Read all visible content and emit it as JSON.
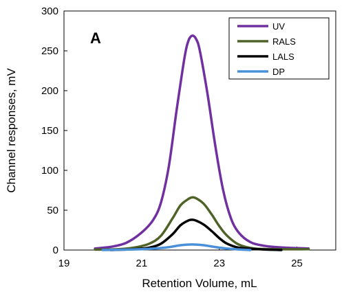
{
  "chart_data": {
    "type": "line",
    "title": "",
    "panel_label": "A",
    "xlabel": "Retention Volume, mL",
    "ylabel": "Channel responses, mV",
    "xlim": [
      19,
      26
    ],
    "ylim": [
      0,
      300
    ],
    "x_ticks": [
      19,
      21,
      23,
      25
    ],
    "y_ticks": [
      0,
      50,
      100,
      150,
      200,
      250,
      300
    ],
    "grid": false,
    "legend_position": "top-right",
    "series": [
      {
        "name": "UV",
        "color": "#7030a0",
        "points": [
          [
            19.8,
            2
          ],
          [
            20.2,
            4
          ],
          [
            20.6,
            9
          ],
          [
            21.0,
            22
          ],
          [
            21.3,
            38
          ],
          [
            21.5,
            60
          ],
          [
            21.7,
            105
          ],
          [
            21.9,
            175
          ],
          [
            22.1,
            240
          ],
          [
            22.2,
            262
          ],
          [
            22.3,
            269
          ],
          [
            22.4,
            265
          ],
          [
            22.5,
            250
          ],
          [
            22.7,
            195
          ],
          [
            22.9,
            130
          ],
          [
            23.1,
            75
          ],
          [
            23.3,
            40
          ],
          [
            23.5,
            22
          ],
          [
            23.8,
            10
          ],
          [
            24.2,
            5
          ],
          [
            24.7,
            3
          ],
          [
            25.3,
            2
          ]
        ]
      },
      {
        "name": "RALS",
        "color": "#4f6228",
        "points": [
          [
            19.8,
            0.5
          ],
          [
            20.4,
            1
          ],
          [
            20.8,
            3
          ],
          [
            21.2,
            8
          ],
          [
            21.5,
            18
          ],
          [
            21.8,
            40
          ],
          [
            22.0,
            56
          ],
          [
            22.2,
            64
          ],
          [
            22.3,
            66
          ],
          [
            22.4,
            65
          ],
          [
            22.6,
            58
          ],
          [
            22.8,
            45
          ],
          [
            23.0,
            30
          ],
          [
            23.2,
            18
          ],
          [
            23.5,
            7
          ],
          [
            23.9,
            2
          ],
          [
            24.5,
            1
          ],
          [
            25.3,
            1
          ]
        ]
      },
      {
        "name": "LALS",
        "color": "#000000",
        "points": [
          [
            20.2,
            0
          ],
          [
            20.8,
            1
          ],
          [
            21.2,
            3
          ],
          [
            21.5,
            8
          ],
          [
            21.8,
            20
          ],
          [
            22.0,
            31
          ],
          [
            22.2,
            37
          ],
          [
            22.3,
            38
          ],
          [
            22.4,
            37
          ],
          [
            22.6,
            32
          ],
          [
            22.8,
            24
          ],
          [
            23.0,
            15
          ],
          [
            23.2,
            8
          ],
          [
            23.5,
            3
          ],
          [
            24.0,
            1
          ],
          [
            24.6,
            0
          ]
        ]
      },
      {
        "name": "DP",
        "color": "#4a90d9",
        "points": [
          [
            20.0,
            0
          ],
          [
            21.0,
            1
          ],
          [
            21.6,
            3
          ],
          [
            22.0,
            6
          ],
          [
            22.3,
            7
          ],
          [
            22.6,
            6
          ],
          [
            23.0,
            3
          ],
          [
            23.4,
            1
          ],
          [
            23.8,
            0
          ]
        ]
      }
    ]
  }
}
